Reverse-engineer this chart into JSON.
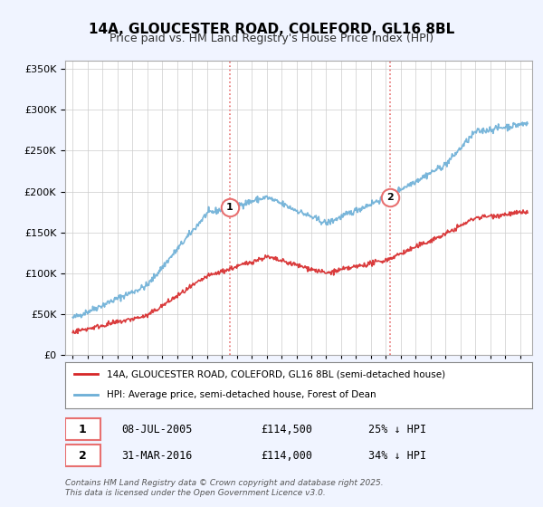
{
  "title": "14A, GLOUCESTER ROAD, COLEFORD, GL16 8BL",
  "subtitle": "Price paid vs. HM Land Registry's House Price Index (HPI)",
  "ylabel_ticks": [
    "£0",
    "£50K",
    "£100K",
    "£150K",
    "£200K",
    "£250K",
    "£300K",
    "£350K"
  ],
  "ylim": [
    0,
    360000
  ],
  "hpi_color": "#6baed6",
  "price_color": "#d62728",
  "vline_color": "#e87070",
  "vline_style": ":",
  "transaction1": {
    "date_num": 2005.52,
    "price": 114500,
    "label": "1"
  },
  "transaction2": {
    "date_num": 2016.25,
    "price": 114000,
    "label": "2"
  },
  "legend_entries": [
    "14A, GLOUCESTER ROAD, COLEFORD, GL16 8BL (semi-detached house)",
    "HPI: Average price, semi-detached house, Forest of Dean"
  ],
  "annotation1": [
    "1",
    "08-JUL-2005",
    "£114,500",
    "25% ↓ HPI"
  ],
  "annotation2": [
    "2",
    "31-MAR-2016",
    "£114,000",
    "34% ↓ HPI"
  ],
  "footnote": "Contains HM Land Registry data © Crown copyright and database right 2025.\nThis data is licensed under the Open Government Licence v3.0.",
  "background_color": "#f0f4ff",
  "plot_bg_color": "#ffffff",
  "grid_color": "#cccccc"
}
